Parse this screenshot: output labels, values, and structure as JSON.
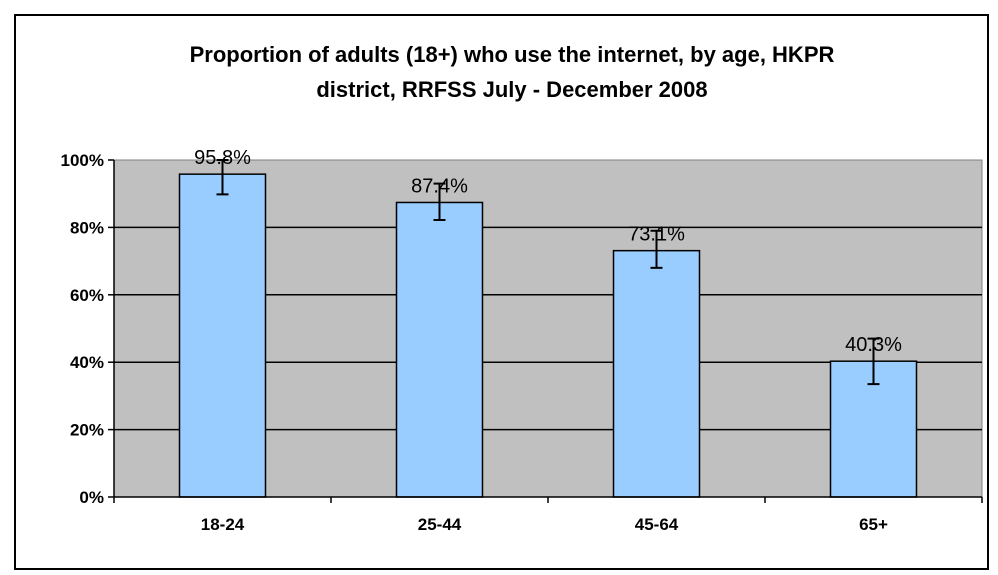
{
  "chart_data": {
    "type": "bar",
    "title_lines": [
      "Proportion of adults (18+) who use the internet, by age, HKPR",
      "district, RRFSS July - December 2008"
    ],
    "categories": [
      "18-24",
      "25-44",
      "45-64",
      "65+"
    ],
    "values": [
      95.8,
      87.4,
      73.1,
      40.3
    ],
    "data_labels": [
      "95.8%",
      "87.4%",
      "73.1%",
      "40.3%"
    ],
    "error_low": [
      89.8,
      82.2,
      68.0,
      33.5
    ],
    "error_high": [
      100.0,
      93.0,
      79.0,
      47.0
    ],
    "yticks": [
      0,
      20,
      40,
      60,
      80,
      100
    ],
    "ytick_labels": [
      "0%",
      "20%",
      "40%",
      "60%",
      "80%",
      "100%"
    ],
    "ylim": [
      0,
      100
    ],
    "xlabel": "",
    "ylabel": "",
    "grid": true,
    "legend": "none",
    "colors": {
      "bar_fill": "#99ccff",
      "plot_area": "#c0c0c0",
      "gridline": "#000000",
      "outline": "#000000"
    }
  }
}
